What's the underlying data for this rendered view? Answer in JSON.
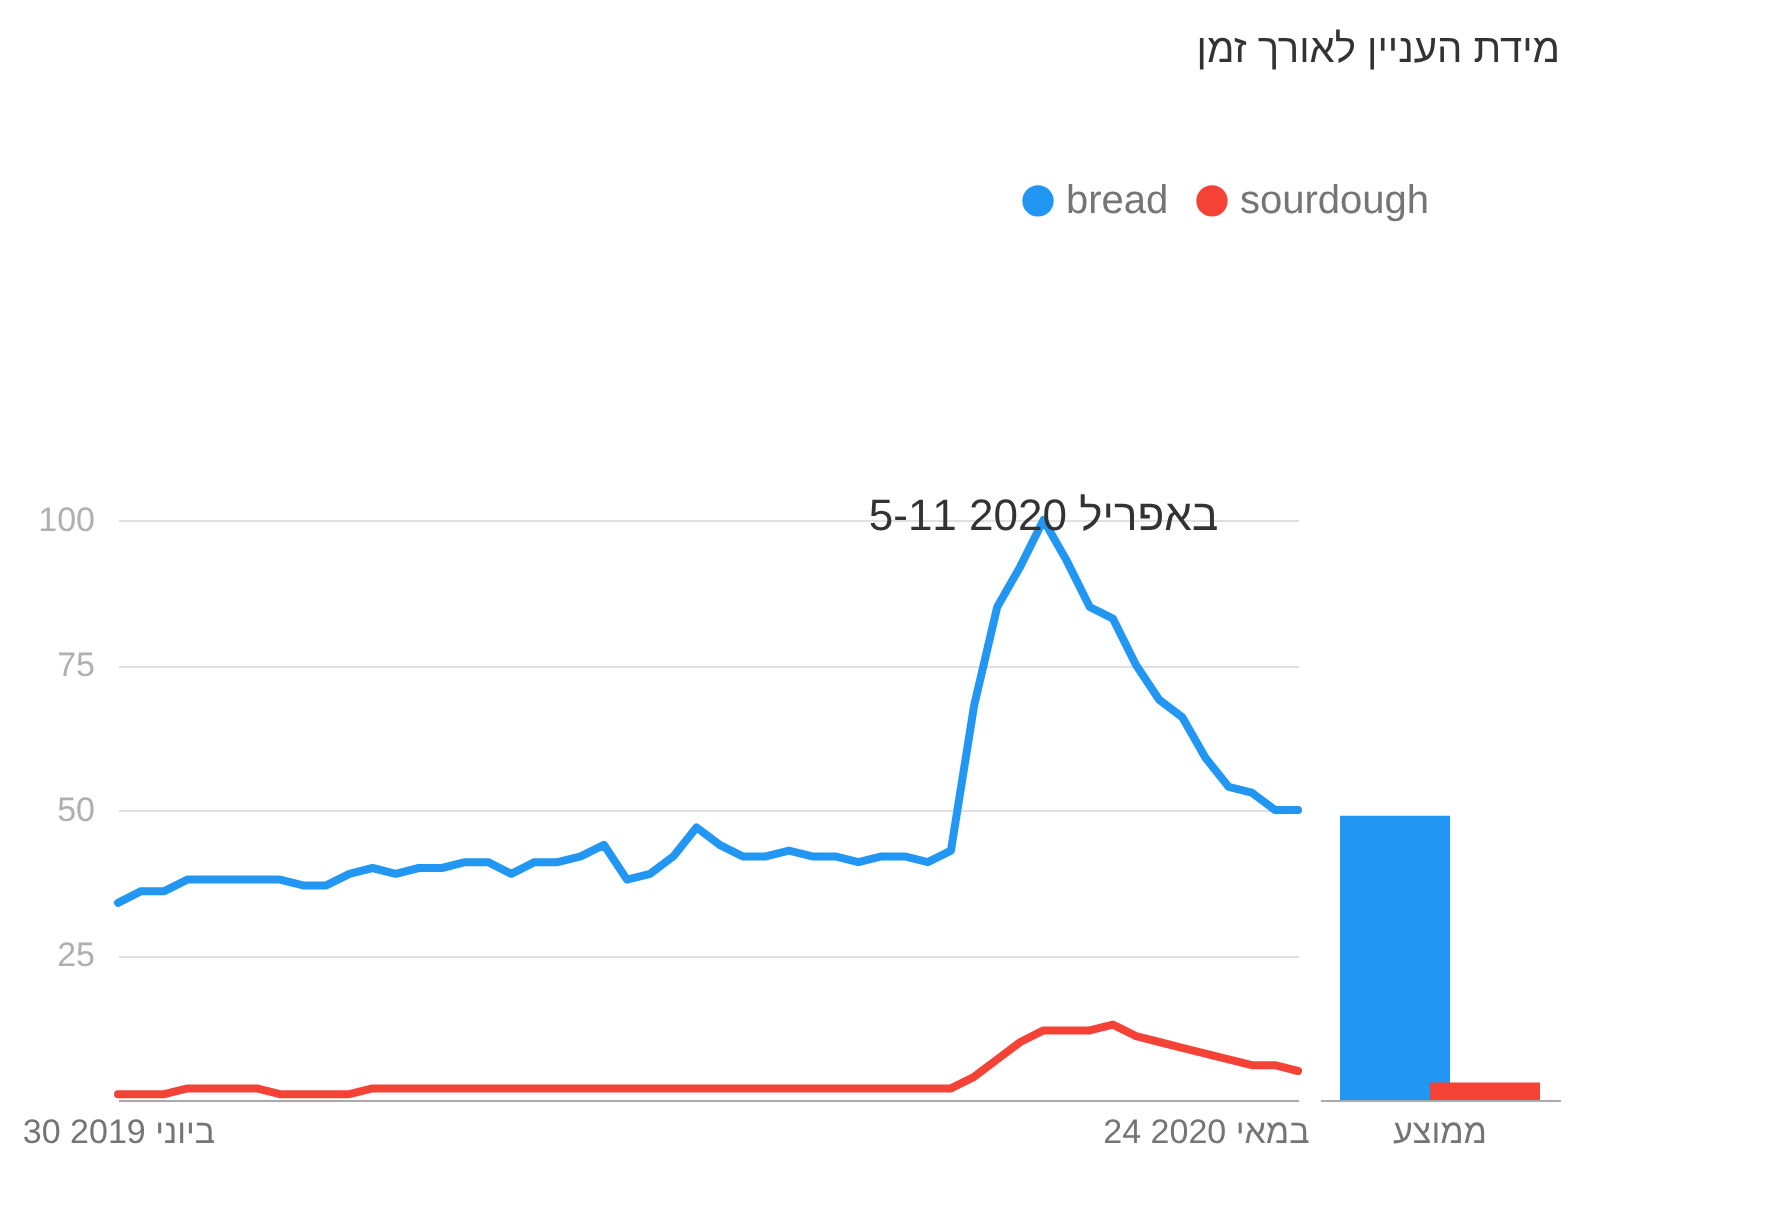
{
  "chart_data": [
    {
      "type": "line",
      "title": "מידת העניין לאורך זמן",
      "x": [
        "2019-06-30",
        "2019-07-07",
        "2019-07-14",
        "2019-07-21",
        "2019-07-28",
        "2019-08-04",
        "2019-08-11",
        "2019-08-18",
        "2019-08-25",
        "2019-09-01",
        "2019-09-08",
        "2019-09-15",
        "2019-09-22",
        "2019-09-29",
        "2019-10-06",
        "2019-10-13",
        "2019-10-20",
        "2019-10-27",
        "2019-11-03",
        "2019-11-10",
        "2019-11-17",
        "2019-11-24",
        "2019-12-01",
        "2019-12-08",
        "2019-12-15",
        "2019-12-22",
        "2019-12-29",
        "2020-01-05",
        "2020-01-12",
        "2020-01-19",
        "2020-01-26",
        "2020-02-02",
        "2020-02-09",
        "2020-02-16",
        "2020-02-23",
        "2020-03-01",
        "2020-03-08",
        "2020-03-15",
        "2020-03-22",
        "2020-03-29",
        "2020-04-05",
        "2020-04-12",
        "2020-04-19",
        "2020-04-26",
        "2020-05-03",
        "2020-05-10",
        "2020-05-17",
        "2020-05-24",
        "2020-05-31",
        "2020-06-07",
        "2020-06-14",
        "2020-06-21"
      ],
      "series": [
        {
          "name": "bread",
          "color": "#2196f3",
          "values": [
            34,
            36,
            36,
            38,
            38,
            38,
            38,
            38,
            37,
            37,
            39,
            40,
            39,
            40,
            40,
            41,
            41,
            39,
            41,
            41,
            42,
            44,
            38,
            39,
            42,
            47,
            44,
            42,
            42,
            43,
            42,
            42,
            41,
            42,
            42,
            41,
            43,
            68,
            85,
            92,
            100,
            93,
            85,
            83,
            75,
            69,
            66,
            59,
            54,
            53,
            50,
            50
          ]
        },
        {
          "name": "sourdough",
          "color": "#f44336",
          "values": [
            1,
            1,
            1,
            2,
            2,
            2,
            2,
            1,
            1,
            1,
            1,
            2,
            2,
            2,
            2,
            2,
            2,
            2,
            2,
            2,
            2,
            2,
            2,
            2,
            2,
            2,
            2,
            2,
            2,
            2,
            2,
            2,
            2,
            2,
            2,
            2,
            2,
            4,
            7,
            10,
            12,
            12,
            12,
            13,
            11,
            10,
            9,
            8,
            7,
            6,
            6,
            5
          ]
        }
      ],
      "xlim": [
        "2019-06-30",
        "2020-06-21"
      ],
      "xticks": [
        {
          "value": "2019-06-30",
          "label": "30 ביוני 2019"
        },
        {
          "value": "2020-05-24",
          "label": "24 במאי 2020"
        }
      ],
      "ylim": [
        0,
        100
      ],
      "yticks": [
        25,
        50,
        75,
        100
      ],
      "grid": "y",
      "legend": "top right",
      "marker": "none",
      "line_style": "solid",
      "annotations": [
        {
          "text": "5-11 באפריל 2020",
          "x": "2020-04-05",
          "y": 100
        }
      ]
    },
    {
      "type": "bar",
      "categories": [
        "ממוצע"
      ],
      "series": [
        {
          "name": "bread",
          "color": "#2196f3",
          "values": [
            49
          ]
        },
        {
          "name": "sourdough",
          "color": "#f44336",
          "values": [
            3
          ]
        }
      ],
      "ylim": [
        0,
        100
      ],
      "tick_labels": "x",
      "grid": false
    }
  ]
}
